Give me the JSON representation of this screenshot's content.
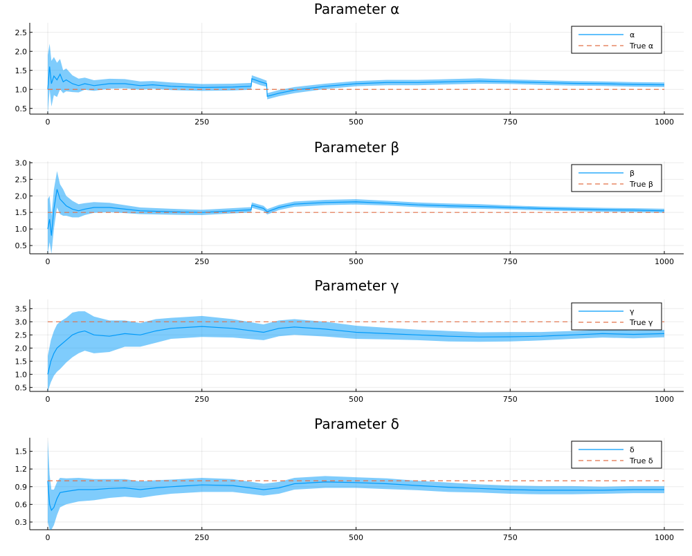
{
  "colors": {
    "estimate": "#009AFA",
    "band": "#009AFA",
    "band_opacity": 0.5,
    "true_line": "#E26F46",
    "background": "#ffffff"
  },
  "chart_data": [
    {
      "type": "line",
      "title": "Parameter α",
      "xlim": [
        0,
        1000
      ],
      "ylim": [
        0.35,
        2.75
      ],
      "xticks": [
        0,
        250,
        500,
        750,
        1000
      ],
      "yticks": [
        0.5,
        1.0,
        1.5,
        2.0,
        2.5
      ],
      "ytick_labels": [
        "0.5",
        "1.0",
        "1.5",
        "2.0",
        "2.5"
      ],
      "grid": true,
      "legend_position": "top-right",
      "true_value": 1.0,
      "series": [
        {
          "name": "α",
          "style": "solid",
          "x": [
            0,
            3,
            6,
            10,
            15,
            20,
            25,
            30,
            40,
            50,
            60,
            75,
            100,
            125,
            150,
            170,
            200,
            250,
            300,
            330,
            331,
            345,
            355,
            356,
            375,
            400,
            450,
            500,
            550,
            600,
            650,
            700,
            750,
            800,
            850,
            900,
            950,
            1000
          ],
          "y": [
            1.0,
            1.6,
            1.15,
            1.35,
            1.25,
            1.4,
            1.2,
            1.25,
            1.15,
            1.1,
            1.15,
            1.1,
            1.15,
            1.15,
            1.1,
            1.12,
            1.08,
            1.05,
            1.06,
            1.08,
            1.28,
            1.2,
            1.15,
            0.82,
            0.9,
            0.98,
            1.08,
            1.15,
            1.18,
            1.18,
            1.2,
            1.22,
            1.2,
            1.18,
            1.16,
            1.15,
            1.13,
            1.12
          ]
        },
        {
          "name": "True α",
          "style": "dashed",
          "x": [
            0,
            1000
          ],
          "y": [
            1.0,
            1.0
          ]
        }
      ],
      "band_width": [
        0.9,
        0.6,
        0.6,
        0.5,
        0.45,
        0.4,
        0.3,
        0.3,
        0.22,
        0.18,
        0.16,
        0.14,
        0.13,
        0.12,
        0.11,
        0.1,
        0.1,
        0.09,
        0.09,
        0.09,
        0.09,
        0.09,
        0.08,
        0.08,
        0.08,
        0.08,
        0.07,
        0.07,
        0.07,
        0.07,
        0.07,
        0.07,
        0.06,
        0.06,
        0.06,
        0.06,
        0.06,
        0.06
      ]
    },
    {
      "type": "line",
      "title": "Parameter β",
      "xlim": [
        0,
        1000
      ],
      "ylim": [
        0.25,
        3.05
      ],
      "xticks": [
        0,
        250,
        500,
        750,
        1000
      ],
      "yticks": [
        0.5,
        1.0,
        1.5,
        2.0,
        2.5,
        3.0
      ],
      "ytick_labels": [
        "0.5",
        "1.0",
        "1.5",
        "2.0",
        "2.5",
        "3.0"
      ],
      "grid": true,
      "legend_position": "top-right",
      "true_value": 1.5,
      "series": [
        {
          "name": "β",
          "style": "solid",
          "x": [
            0,
            3,
            6,
            10,
            15,
            20,
            25,
            30,
            40,
            50,
            60,
            75,
            100,
            125,
            150,
            200,
            250,
            300,
            330,
            331,
            350,
            356,
            375,
            400,
            450,
            500,
            550,
            600,
            650,
            700,
            750,
            800,
            850,
            900,
            950,
            1000
          ],
          "y": [
            1.0,
            1.3,
            0.8,
            1.6,
            2.2,
            1.9,
            1.8,
            1.7,
            1.6,
            1.55,
            1.6,
            1.65,
            1.65,
            1.6,
            1.55,
            1.52,
            1.5,
            1.55,
            1.58,
            1.72,
            1.62,
            1.52,
            1.65,
            1.75,
            1.8,
            1.82,
            1.78,
            1.73,
            1.7,
            1.68,
            1.65,
            1.62,
            1.6,
            1.58,
            1.57,
            1.55
          ]
        },
        {
          "name": "True β",
          "style": "dashed",
          "x": [
            0,
            1000
          ],
          "y": [
            1.5,
            1.5
          ]
        }
      ],
      "band_width": [
        0.9,
        0.7,
        0.6,
        0.6,
        0.55,
        0.45,
        0.4,
        0.3,
        0.25,
        0.2,
        0.18,
        0.16,
        0.14,
        0.12,
        0.1,
        0.09,
        0.08,
        0.08,
        0.08,
        0.08,
        0.08,
        0.08,
        0.08,
        0.08,
        0.08,
        0.08,
        0.07,
        0.07,
        0.07,
        0.07,
        0.06,
        0.06,
        0.06,
        0.06,
        0.06,
        0.06
      ]
    },
    {
      "type": "line",
      "title": "Parameter γ",
      "xlim": [
        0,
        1000
      ],
      "ylim": [
        0.35,
        3.85
      ],
      "xticks": [
        0,
        250,
        500,
        750,
        1000
      ],
      "yticks": [
        0.5,
        1.0,
        1.5,
        2.0,
        2.5,
        3.0,
        3.5
      ],
      "ytick_labels": [
        "0.5",
        "1.0",
        "1.5",
        "2.0",
        "2.5",
        "3.0",
        "3.5"
      ],
      "grid": true,
      "legend_position": "top-right",
      "true_value": 3.0,
      "series": [
        {
          "name": "γ",
          "style": "solid",
          "x": [
            0,
            5,
            10,
            15,
            20,
            30,
            40,
            50,
            60,
            75,
            100,
            125,
            150,
            175,
            200,
            250,
            300,
            350,
            375,
            400,
            450,
            500,
            550,
            600,
            650,
            700,
            750,
            800,
            850,
            900,
            950,
            1000
          ],
          "y": [
            1.0,
            1.5,
            1.8,
            2.0,
            2.1,
            2.3,
            2.5,
            2.6,
            2.65,
            2.5,
            2.45,
            2.55,
            2.5,
            2.65,
            2.75,
            2.82,
            2.75,
            2.6,
            2.75,
            2.8,
            2.72,
            2.6,
            2.55,
            2.5,
            2.45,
            2.42,
            2.43,
            2.45,
            2.5,
            2.55,
            2.52,
            2.55
          ]
        },
        {
          "name": "True γ",
          "style": "dashed",
          "x": [
            0,
            1000
          ],
          "y": [
            3.0,
            3.0
          ]
        }
      ],
      "band_width": [
        0.7,
        0.8,
        0.85,
        0.9,
        0.9,
        0.85,
        0.85,
        0.8,
        0.75,
        0.7,
        0.6,
        0.5,
        0.45,
        0.45,
        0.4,
        0.4,
        0.35,
        0.3,
        0.3,
        0.3,
        0.28,
        0.25,
        0.22,
        0.2,
        0.2,
        0.18,
        0.18,
        0.16,
        0.15,
        0.15,
        0.15,
        0.14
      ]
    },
    {
      "type": "line",
      "title": "Parameter δ",
      "xlim": [
        0,
        1000
      ],
      "ylim": [
        0.17,
        1.73
      ],
      "xticks": [
        0,
        250,
        500,
        750,
        1000
      ],
      "yticks": [
        0.3,
        0.6,
        0.9,
        1.2,
        1.5
      ],
      "ytick_labels": [
        "0.3",
        "0.6",
        "0.9",
        "1.2",
        "1.5"
      ],
      "grid": true,
      "legend_position": "top-right",
      "true_value": 1.0,
      "series": [
        {
          "name": "δ",
          "style": "solid",
          "x": [
            0,
            3,
            6,
            10,
            15,
            20,
            30,
            50,
            75,
            100,
            125,
            150,
            175,
            200,
            250,
            300,
            350,
            375,
            400,
            450,
            500,
            550,
            600,
            650,
            700,
            750,
            800,
            850,
            900,
            950,
            1000
          ],
          "y": [
            1.0,
            0.6,
            0.5,
            0.55,
            0.7,
            0.8,
            0.82,
            0.85,
            0.85,
            0.87,
            0.88,
            0.85,
            0.88,
            0.9,
            0.93,
            0.92,
            0.85,
            0.88,
            0.95,
            0.98,
            0.97,
            0.95,
            0.92,
            0.89,
            0.87,
            0.85,
            0.84,
            0.84,
            0.84,
            0.85,
            0.85
          ]
        },
        {
          "name": "True δ",
          "style": "dashed",
          "x": [
            0,
            1000
          ],
          "y": [
            1.0,
            1.0
          ]
        }
      ],
      "band_width": [
        0.7,
        0.5,
        0.35,
        0.3,
        0.28,
        0.25,
        0.22,
        0.2,
        0.18,
        0.16,
        0.15,
        0.14,
        0.13,
        0.12,
        0.12,
        0.11,
        0.1,
        0.1,
        0.1,
        0.1,
        0.09,
        0.09,
        0.08,
        0.08,
        0.07,
        0.07,
        0.07,
        0.07,
        0.06,
        0.06,
        0.06
      ]
    }
  ]
}
